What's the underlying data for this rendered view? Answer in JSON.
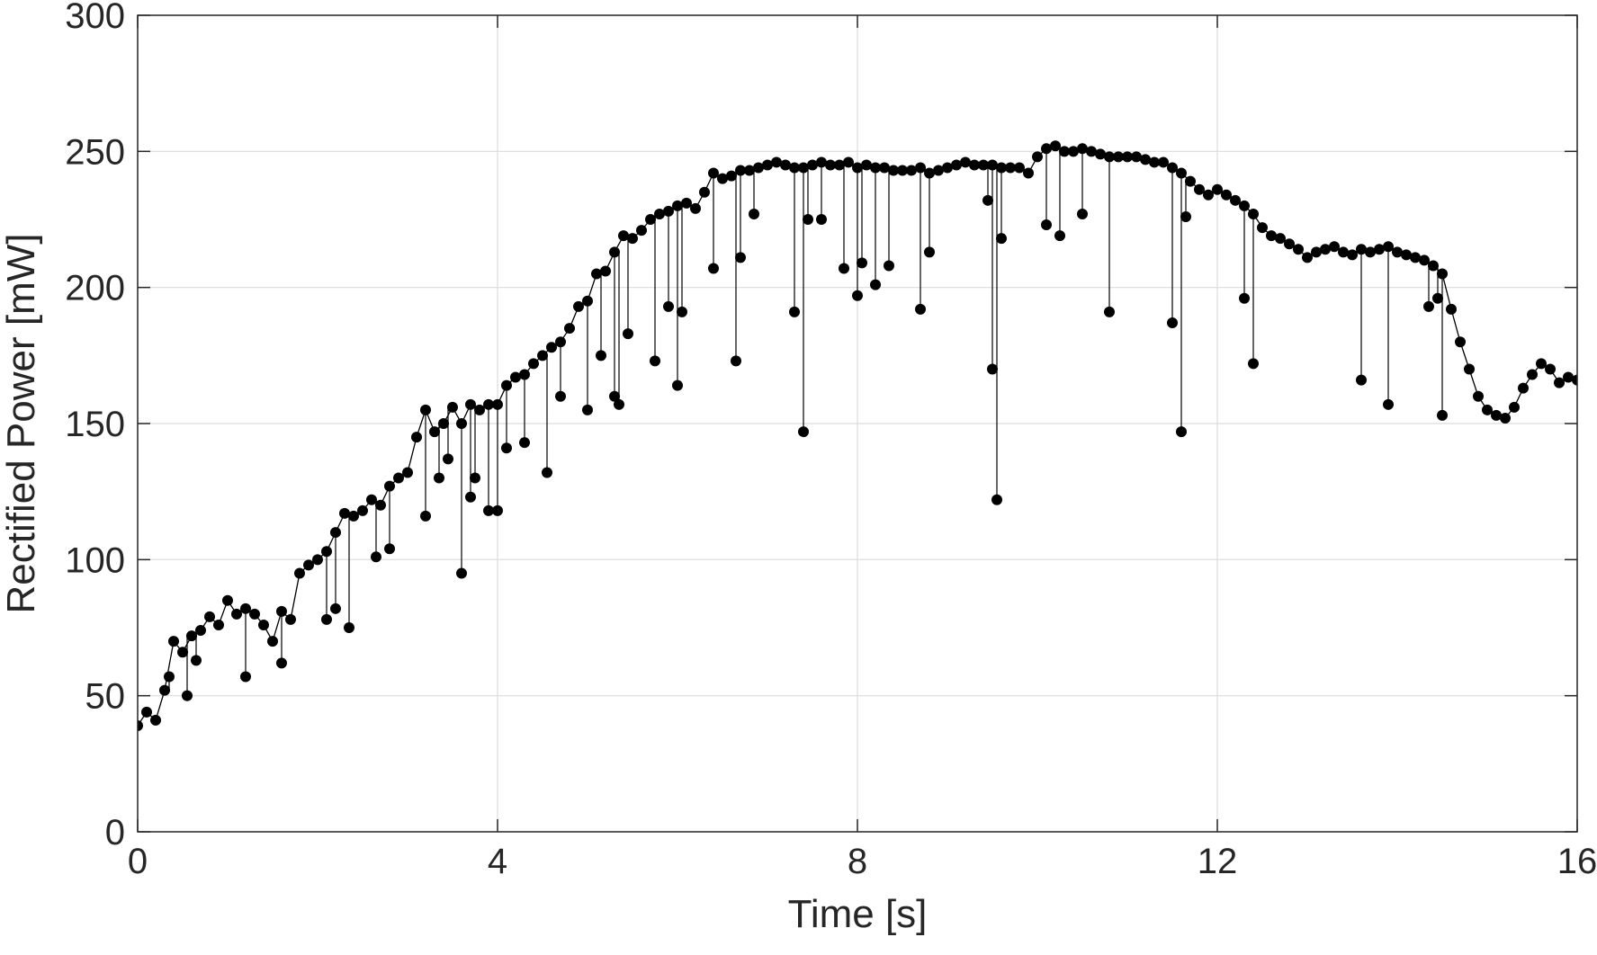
{
  "chart_data": {
    "type": "line",
    "title": "",
    "xlabel": "Time [s]",
    "ylabel": "Rectified Power [mW]",
    "xlim": [
      0,
      16
    ],
    "ylim": [
      0,
      300
    ],
    "x_ticks": [
      0,
      4,
      8,
      12,
      16
    ],
    "y_ticks": [
      0,
      50,
      100,
      150,
      200,
      250,
      300
    ],
    "x_tick_labels": [
      "0",
      "4",
      "8",
      "12",
      "16"
    ],
    "y_tick_labels": [
      "0",
      "50",
      "100",
      "150",
      "200",
      "250",
      "300"
    ],
    "grid": true,
    "legend": "none",
    "marker": "filled-circle",
    "line_color": "#000000",
    "series": [
      {
        "x": [
          0.0,
          0.1,
          0.2,
          0.3,
          0.4,
          0.5,
          0.6,
          0.7,
          0.8,
          0.9,
          1.0,
          1.1,
          1.2,
          1.3,
          1.4,
          1.5,
          1.6,
          1.7,
          1.8,
          1.9,
          2.0,
          2.1,
          2.2,
          2.3,
          2.4,
          2.5,
          2.6,
          2.7,
          2.8,
          2.9,
          3.0,
          3.1,
          3.2,
          3.3,
          3.4,
          3.5,
          3.6,
          3.7,
          3.8,
          3.9,
          4.0,
          4.1,
          4.2,
          4.3,
          4.4,
          4.5,
          4.6,
          4.7,
          4.8,
          4.9,
          5.0,
          5.1,
          5.2,
          5.3,
          5.4,
          5.5,
          5.6,
          5.7,
          5.8,
          5.9,
          6.0,
          6.1,
          6.2,
          6.3,
          6.4,
          6.5,
          6.6,
          6.7,
          6.8,
          6.9,
          7.0,
          7.1,
          7.2,
          7.3,
          7.4,
          7.5,
          7.6,
          7.7,
          7.8,
          7.9,
          8.0,
          8.1,
          8.2,
          8.3,
          8.4,
          8.5,
          8.6,
          8.7,
          8.8,
          8.9,
          9.0,
          9.1,
          9.2,
          9.3,
          9.4,
          9.5,
          9.6,
          9.7,
          9.8,
          9.9,
          10.0,
          10.1,
          10.2,
          10.3,
          10.4,
          10.5,
          10.6,
          10.7,
          10.8,
          10.9,
          11.0,
          11.1,
          11.2,
          11.3,
          11.4,
          11.5,
          11.6,
          11.7,
          11.8,
          11.9,
          12.0,
          12.1,
          12.2,
          12.3,
          12.4,
          12.5,
          12.6,
          12.7,
          12.8,
          12.9,
          13.0,
          13.1,
          13.2,
          13.3,
          13.4,
          13.5,
          13.6,
          13.7,
          13.8,
          13.9,
          14.0,
          14.1,
          14.2,
          14.3,
          14.4,
          14.5,
          14.6,
          14.7,
          14.8,
          14.9,
          15.0,
          15.1,
          15.2,
          15.3,
          15.4,
          15.5,
          15.6,
          15.7,
          15.8,
          15.9,
          16.0
        ],
        "y": [
          39,
          44,
          41,
          52,
          70,
          66,
          72,
          74,
          79,
          76,
          85,
          80,
          82,
          80,
          76,
          70,
          81,
          78,
          95,
          98,
          100,
          103,
          110,
          117,
          116,
          118,
          122,
          120,
          127,
          130,
          132,
          145,
          155,
          147,
          150,
          156,
          150,
          157,
          155,
          157,
          157,
          164,
          167,
          168,
          172,
          175,
          178,
          180,
          185,
          193,
          195,
          205,
          206,
          213,
          219,
          218,
          221,
          225,
          227,
          228,
          230,
          231,
          229,
          235,
          242,
          240,
          241,
          243,
          243,
          244,
          245,
          246,
          245,
          244,
          244,
          245,
          246,
          245,
          245,
          246,
          244,
          245,
          244,
          244,
          243,
          243,
          243,
          244,
          242,
          243,
          244,
          245,
          246,
          245,
          245,
          245,
          244,
          244,
          244,
          242,
          248,
          251,
          252,
          250,
          250,
          251,
          250,
          249,
          248,
          248,
          248,
          248,
          247,
          246,
          246,
          244,
          242,
          239,
          236,
          234,
          236,
          234,
          232,
          230,
          227,
          222,
          219,
          218,
          216,
          214,
          211,
          213,
          214,
          215,
          213,
          212,
          214,
          213,
          214,
          215,
          213,
          212,
          211,
          210,
          208,
          205,
          192,
          180,
          170,
          160,
          155,
          153,
          152,
          156,
          163,
          168,
          172,
          170,
          165,
          167,
          166
        ]
      },
      {
        "x": [
          0.35,
          0.55,
          0.65,
          1.2,
          1.6,
          2.1,
          2.2,
          2.35,
          2.65,
          2.8,
          3.2,
          3.35,
          3.45,
          3.6,
          3.7,
          3.75,
          3.9,
          4.0,
          4.1,
          4.3,
          4.55,
          4.7,
          5.0,
          5.15,
          5.3,
          5.35,
          5.45,
          5.75,
          5.9,
          6.0,
          6.05,
          6.4,
          6.65,
          6.7,
          6.85,
          7.3,
          7.4,
          7.45,
          7.6,
          7.85,
          8.0,
          8.05,
          8.2,
          8.35,
          8.7,
          8.8,
          9.5,
          9.55,
          9.6,
          9.45,
          10.1,
          10.25,
          10.5,
          10.8,
          11.5,
          11.6,
          11.65,
          12.3,
          12.4,
          13.6,
          13.9,
          14.35,
          14.45,
          14.5
        ],
        "y": [
          57,
          50,
          63,
          57,
          62,
          78,
          82,
          75,
          101,
          104,
          116,
          130,
          137,
          95,
          123,
          130,
          118,
          118,
          141,
          143,
          132,
          160,
          155,
          175,
          160,
          157,
          183,
          173,
          193,
          164,
          191,
          207,
          173,
          211,
          227,
          191,
          147,
          225,
          225,
          207,
          197,
          209,
          201,
          208,
          192,
          213,
          170,
          122,
          218,
          232,
          223,
          219,
          227,
          191,
          187,
          147,
          226,
          196,
          172,
          166,
          157,
          193,
          196,
          153
        ]
      }
    ]
  }
}
